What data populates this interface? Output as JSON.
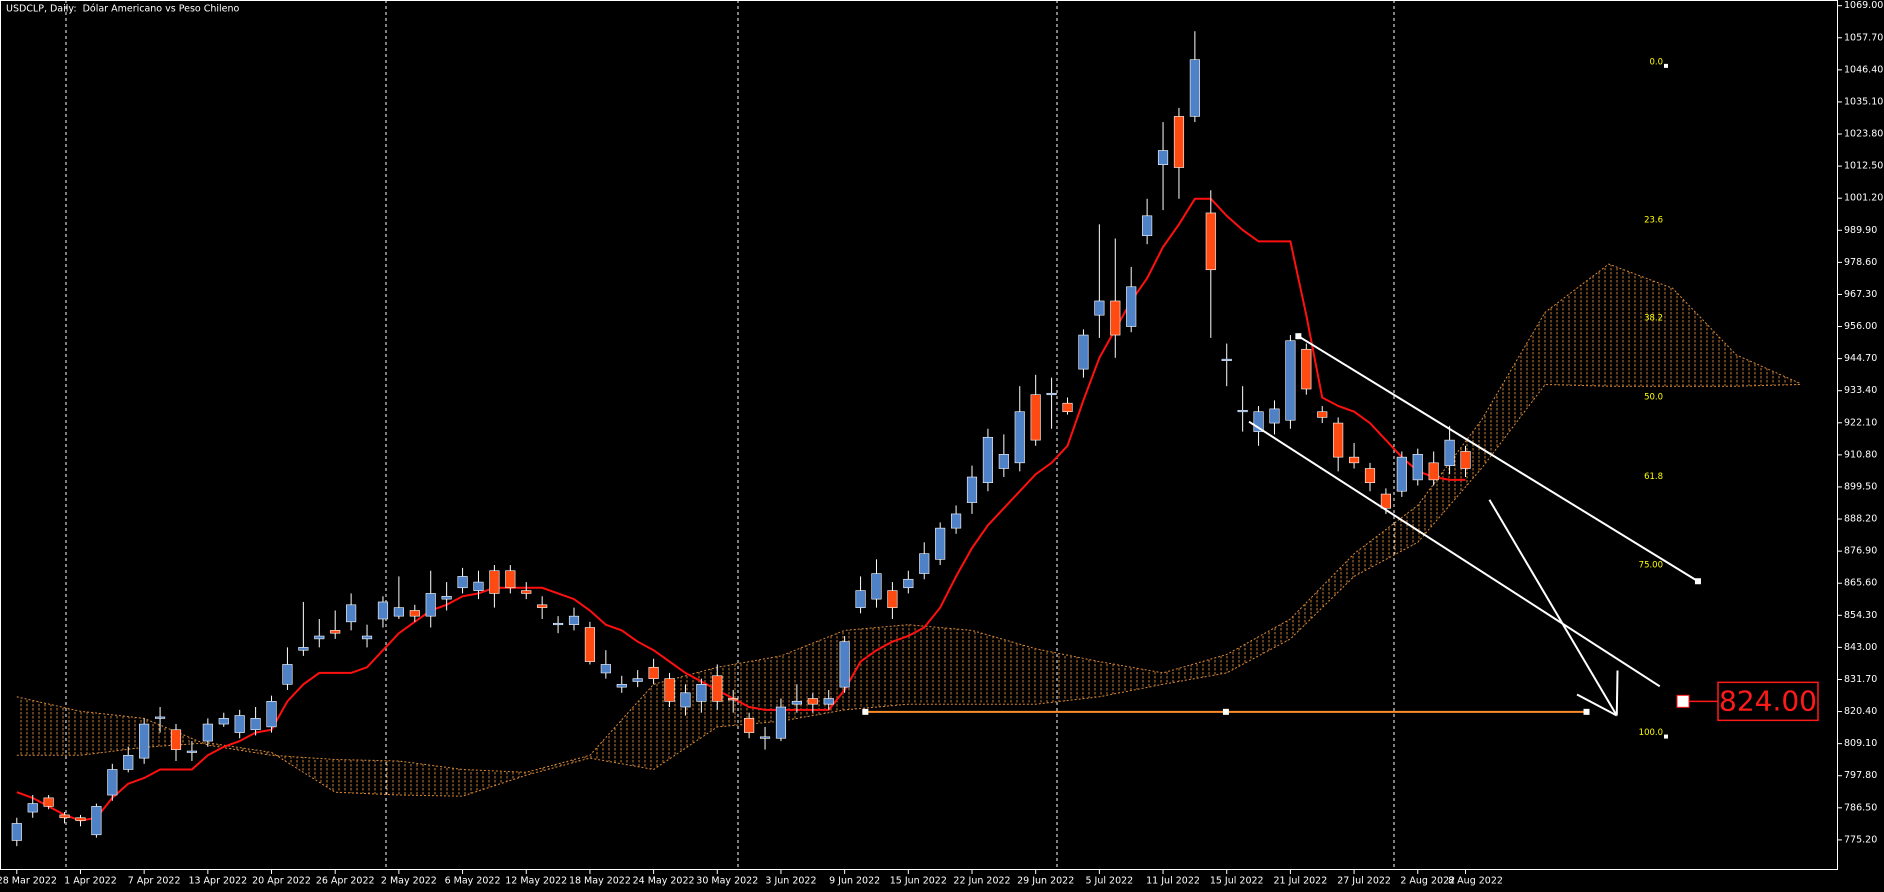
{
  "chart_data": {
    "type": "candlestick",
    "title": "USDCLP, Daily:  Dólar Americano vs Peso Chileno",
    "categories": [
      "28 Mar 2022",
      null,
      null,
      null,
      "1 Apr 2022",
      null,
      null,
      null,
      "7 Apr 2022",
      null,
      null,
      null,
      "13 Apr 2022",
      null,
      null,
      null,
      "20 Apr 2022",
      null,
      null,
      null,
      "26 Apr 2022",
      null,
      null,
      null,
      "2 May 2022",
      null,
      null,
      null,
      "6 May 2022",
      null,
      null,
      null,
      "12 May 2022",
      null,
      null,
      null,
      "18 May 2022",
      null,
      null,
      null,
      "24 May 2022",
      null,
      null,
      null,
      "30 May 2022",
      null,
      null,
      null,
      "3 Jun 2022",
      null,
      null,
      null,
      "9 Jun 2022",
      null,
      null,
      null,
      "15 Jun 2022",
      null,
      null,
      null,
      "22 Jun 2022",
      null,
      null,
      null,
      "29 Jun 2022",
      null,
      null,
      null,
      "5 Jul 2022",
      null,
      null,
      null,
      "11 Jul 2022",
      null,
      null,
      null,
      "15 Jul 2022",
      null,
      null,
      null,
      "21 Jul 2022",
      null,
      null,
      null,
      "27 Jul 2022",
      null,
      null,
      null,
      "2 Aug 2022",
      null,
      null,
      "8 Aug 2022"
    ],
    "open": [
      775,
      785,
      790,
      784,
      783,
      777,
      791,
      800,
      804,
      818,
      814,
      806,
      810,
      816,
      813,
      814,
      815,
      830,
      842,
      846,
      849,
      852,
      846,
      853,
      854,
      856,
      854,
      860,
      864,
      863,
      870,
      870,
      863,
      858,
      851,
      851,
      850,
      834,
      829,
      831,
      836,
      832,
      822,
      824,
      833,
      825,
      818,
      811,
      811,
      823,
      825,
      823,
      829,
      857,
      860,
      863,
      864,
      869,
      874,
      885,
      894,
      901,
      906,
      908,
      932,
      932,
      929,
      941,
      960,
      965,
      956,
      988,
      1013,
      1030,
      1030,
      996,
      944,
      926,
      919,
      922,
      923,
      948,
      926,
      922,
      910,
      906,
      897,
      898,
      902,
      908,
      907,
      912
    ],
    "high": [
      783,
      791,
      791,
      785,
      784,
      788,
      802,
      808,
      818,
      822,
      816,
      810,
      818,
      820,
      821,
      822,
      826,
      843,
      859,
      853,
      856,
      862,
      851,
      861,
      868,
      858,
      870,
      866,
      871,
      870,
      872,
      872,
      866,
      861,
      854,
      857,
      852,
      842,
      833,
      835,
      839,
      834,
      830,
      832,
      837,
      828,
      820,
      815,
      825,
      830,
      827,
      828,
      847,
      868,
      874,
      866,
      870,
      880,
      887,
      893,
      907,
      920,
      918,
      935,
      939,
      938,
      931,
      955,
      992,
      987,
      977,
      1001,
      1028,
      1033,
      1060,
      1004,
      950,
      935,
      928,
      930,
      953,
      950,
      928,
      924,
      915,
      908,
      899,
      912,
      913,
      912,
      921,
      914
    ],
    "low": [
      773,
      783,
      786,
      781,
      780,
      776,
      789,
      799,
      802,
      813,
      803,
      803,
      808,
      815,
      811,
      812,
      813,
      828,
      840,
      843,
      846,
      849,
      843,
      850,
      853,
      852,
      850,
      856,
      862,
      860,
      857,
      862,
      860,
      853,
      848,
      849,
      837,
      832,
      827,
      829,
      830,
      822,
      819,
      820,
      821,
      820,
      811,
      807,
      810,
      820,
      820,
      821,
      827,
      855,
      857,
      853,
      862,
      867,
      872,
      883,
      890,
      898,
      903,
      905,
      914,
      920,
      925,
      938,
      952,
      945,
      954,
      985,
      997,
      1001,
      1028,
      952,
      935,
      919,
      914,
      918,
      920,
      932,
      922,
      905,
      906,
      898,
      890,
      896,
      900,
      900,
      904,
      903
    ],
    "close": [
      781,
      788,
      787,
      783,
      782,
      787,
      800,
      805,
      816,
      818.5,
      807,
      806.5,
      816,
      818,
      819,
      818,
      824,
      837,
      843,
      847,
      848,
      858,
      847,
      859,
      857,
      854,
      862,
      861,
      868,
      866,
      862,
      864,
      862,
      857,
      851.5,
      854,
      838,
      837,
      830,
      832,
      832,
      824,
      827,
      830,
      824,
      824.5,
      813,
      811.5,
      822,
      824,
      823,
      825,
      845,
      863,
      869,
      857,
      867,
      876,
      885,
      890,
      903,
      917,
      911,
      926,
      916,
      932.5,
      926,
      953,
      965,
      953,
      970,
      995,
      1018,
      1012,
      1050,
      976,
      944.5,
      926.5,
      926,
      927,
      951,
      934,
      924,
      910,
      908,
      901,
      892,
      910,
      911,
      902,
      916,
      906
    ],
    "colors": {
      "up": "#4f81c7",
      "down": "#ff4a12",
      "wick": "#ffffff"
    },
    "ylim": [
      764.6,
      1071
    ],
    "yticks": [
      {
        "value": 775.2,
        "label": "775.20"
      },
      {
        "value": 786.5,
        "label": "786.50"
      },
      {
        "value": 797.8,
        "label": "797.80"
      },
      {
        "value": 809.1,
        "label": "809.10"
      },
      {
        "value": 820.4,
        "label": "820.40"
      },
      {
        "value": 831.7,
        "label": "831.70"
      },
      {
        "value": 843,
        "label": "843.00"
      },
      {
        "value": 854.3,
        "label": "854.30"
      },
      {
        "value": 865.6,
        "label": "865.60"
      },
      {
        "value": 876.9,
        "label": "876.90"
      },
      {
        "value": 888.2,
        "label": "888.20"
      },
      {
        "value": 899.5,
        "label": "899.50"
      },
      {
        "value": 910.8,
        "label": "910.80"
      },
      {
        "value": 922.1,
        "label": "922.10"
      },
      {
        "value": 933.4,
        "label": "933.40"
      },
      {
        "value": 944.7,
        "label": "944.70"
      },
      {
        "value": 956,
        "label": "956.00"
      },
      {
        "value": 967.3,
        "label": "967.30"
      },
      {
        "value": 978.6,
        "label": "978.60"
      },
      {
        "value": 989.9,
        "label": "989.90"
      },
      {
        "value": 1001.2,
        "label": "1001.20"
      },
      {
        "value": 1012.5,
        "label": "1012.50"
      },
      {
        "value": 1023.8,
        "label": "1023.80"
      },
      {
        "value": 1035.1,
        "label": "1035.10"
      },
      {
        "value": 1046.4,
        "label": "1046.40"
      },
      {
        "value": 1057.7,
        "label": "1057.70"
      },
      {
        "value": 1069,
        "label": "1069.00"
      }
    ],
    "kijun": {
      "color": "#ff1010",
      "values": [
        792,
        790,
        787,
        784,
        782,
        783,
        790,
        795,
        797,
        800,
        800,
        800,
        805,
        808,
        810,
        813,
        814,
        824,
        830,
        834,
        834,
        834,
        836,
        842,
        848,
        852,
        856,
        858,
        861,
        862,
        864,
        864,
        864,
        864,
        862,
        860,
        856,
        851,
        849,
        845,
        842,
        838,
        834,
        831,
        828,
        825,
        822,
        821,
        821,
        821,
        821,
        821,
        828,
        838,
        842,
        845,
        847,
        850,
        857,
        868,
        878,
        886,
        892,
        898,
        904,
        908,
        914,
        930,
        945,
        955,
        965,
        973,
        984,
        992,
        1001,
        1001,
        995,
        990,
        986,
        986,
        986,
        960,
        931,
        928,
        926,
        922,
        916,
        910,
        905,
        903,
        902,
        902
      ]
    },
    "cloud": {
      "color": "#d98a3a",
      "x": [
        0,
        4,
        8,
        12,
        16,
        20,
        24,
        28,
        32,
        36,
        40,
        44,
        48,
        52,
        56,
        60,
        64,
        68,
        72,
        76,
        80,
        84,
        88,
        92,
        96,
        100,
        104,
        108,
        112
      ],
      "span_a": [
        825.6,
        820.5,
        818,
        808.6,
        805,
        803.5,
        803,
        800,
        799,
        805,
        830,
        836,
        840,
        849,
        851,
        849,
        842.5,
        838,
        834,
        840.5,
        853,
        876,
        893,
        923,
        961,
        978,
        969.5,
        946,
        936
      ],
      "span_b": [
        805,
        805,
        807.8,
        809.4,
        806,
        792,
        791,
        790.6,
        798,
        804,
        800,
        815,
        817,
        821,
        823,
        823,
        823,
        825.6,
        830,
        834,
        846,
        868,
        880,
        906,
        935.6,
        935,
        935,
        935,
        935.6
      ]
    },
    "fib": {
      "color": "#ffff00",
      "high": 1047.8,
      "low": 811.6,
      "levels": [
        {
          "value": 0,
          "label": "0.0"
        },
        23.6,
        38.2,
        {
          "value": 50,
          "label": "50.0"
        },
        61.8,
        {
          "value": 75,
          "label": "75.00"
        },
        {
          "value": 100,
          "label": "100.0"
        }
      ]
    },
    "channel": {
      "color": "#ffffff",
      "upper": {
        "x": [
          80.5,
          105.6
        ],
        "y": [
          952.6,
          866.3
        ]
      },
      "lower": {
        "x": [
          77.4,
          103.2
        ],
        "y": [
          922.5,
          829.3
        ]
      }
    },
    "arrow": {
      "color": "#ffffff",
      "x": [
        92.5,
        100.5
      ],
      "y": [
        895,
        819
      ]
    },
    "level": {
      "color": "#ff8c2a",
      "value": 820.3,
      "x": [
        53.3,
        98.6
      ]
    },
    "target": {
      "color": "#ff1a1a",
      "value": 824,
      "label": "824.00"
    }
  }
}
